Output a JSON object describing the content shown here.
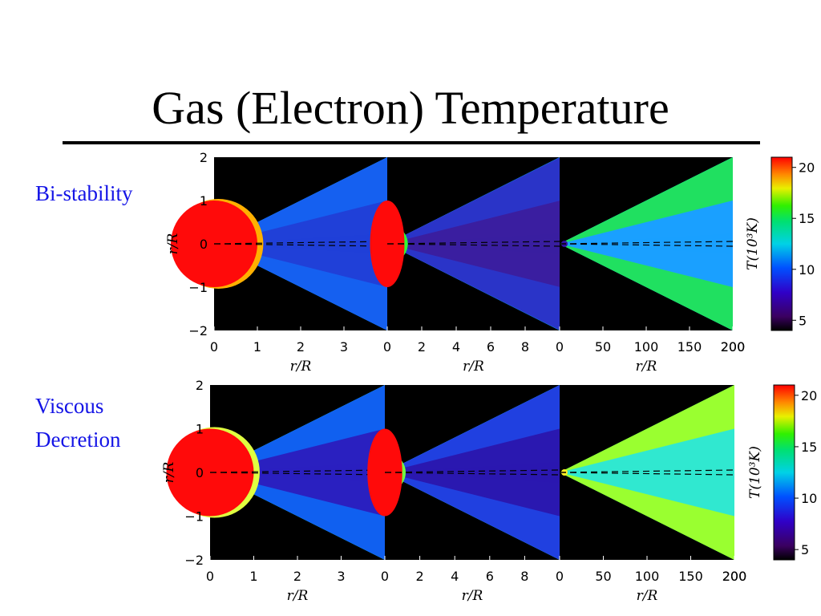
{
  "slide": {
    "title": "Gas (Electron) Temperature",
    "rows": [
      {
        "label_lines": [
          "Bi-stability"
        ]
      },
      {
        "label_lines": [
          "Viscous",
          "Decretion"
        ]
      }
    ]
  },
  "chart_data": [
    {
      "type": "heatmap",
      "title": "",
      "row_label": "Bi-stability",
      "colorbar": {
        "label": "T(10³K)",
        "ticks": [
          5,
          10,
          15,
          20
        ],
        "range": [
          4,
          21
        ]
      },
      "ylabel": "r/R",
      "ylim": [
        -2,
        2
      ],
      "yticks": [
        "2",
        "1",
        "0",
        "−1",
        "−2"
      ],
      "panels": [
        {
          "xlabel": "r/R",
          "xlim": [
            0,
            4
          ],
          "xticks": [
            "0",
            "1",
            "2",
            "3"
          ],
          "star_radius": 1
        },
        {
          "xlabel": "r/R",
          "xlim": [
            0,
            10
          ],
          "xticks": [
            "0",
            "2",
            "4",
            "6",
            "8"
          ],
          "star_radius": 1
        },
        {
          "xlabel": "r/R",
          "xlim": [
            0,
            200
          ],
          "xticks": [
            "0",
            "50",
            "100",
            "150",
            "200"
          ],
          "star_radius": 1
        }
      ]
    },
    {
      "type": "heatmap",
      "title": "",
      "row_label": "Viscous Decretion",
      "colorbar": {
        "label": "T(10³K)",
        "ticks": [
          5,
          10,
          15,
          20
        ],
        "range": [
          4,
          21
        ]
      },
      "ylabel": "r/R",
      "ylim": [
        -2,
        2
      ],
      "yticks": [
        "2",
        "1",
        "0",
        "−1",
        "−2"
      ],
      "panels": [
        {
          "xlabel": "r/R",
          "xlim": [
            0,
            4
          ],
          "xticks": [
            "0",
            "1",
            "2",
            "3"
          ],
          "star_radius": 1
        },
        {
          "xlabel": "r/R",
          "xlim": [
            0,
            10
          ],
          "xticks": [
            "0",
            "2",
            "4",
            "6",
            "8"
          ],
          "star_radius": 1
        },
        {
          "xlabel": "r/R",
          "xlim": [
            0,
            200
          ],
          "xticks": [
            "0",
            "50",
            "100",
            "150",
            "200"
          ],
          "star_radius": 1
        }
      ]
    }
  ]
}
